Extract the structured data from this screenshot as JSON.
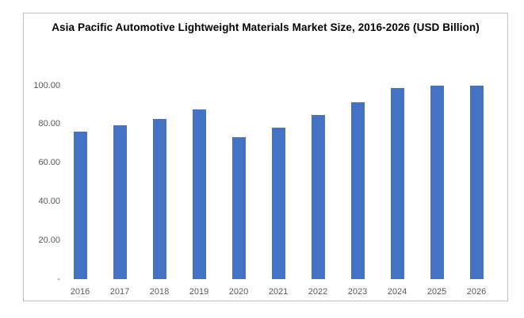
{
  "chart_data": {
    "type": "bar",
    "title": "Asia Pacific Automotive Lightweight Materials Market Size, 2016-2026 (USD Billion)",
    "categories": [
      "2016",
      "2017",
      "2018",
      "2019",
      "2020",
      "2021",
      "2022",
      "2023",
      "2024",
      "2025",
      "2026"
    ],
    "values": [
      76.0,
      79.2,
      82.7,
      87.4,
      73.2,
      78.2,
      84.6,
      91.2,
      98.4,
      99.9,
      99.6
    ],
    "series_name": "Market Size (USD Billion)",
    "xlabel": "",
    "ylabel": "",
    "ylim": [
      0,
      100
    ],
    "y_ticks": [
      {
        "value": 0,
        "label": "-"
      },
      {
        "value": 20,
        "label": "20.00"
      },
      {
        "value": 40,
        "label": "40.00"
      },
      {
        "value": 60,
        "label": "60.00"
      },
      {
        "value": 80,
        "label": "80.00"
      },
      {
        "value": 100,
        "label": "100.00"
      }
    ],
    "grid": false,
    "legend_position": "none",
    "colors": {
      "bar": "#4472c4",
      "tick_text": "#595959",
      "title_text": "#000000",
      "frame_border": "#bfbfbf",
      "background": "#ffffff"
    }
  }
}
